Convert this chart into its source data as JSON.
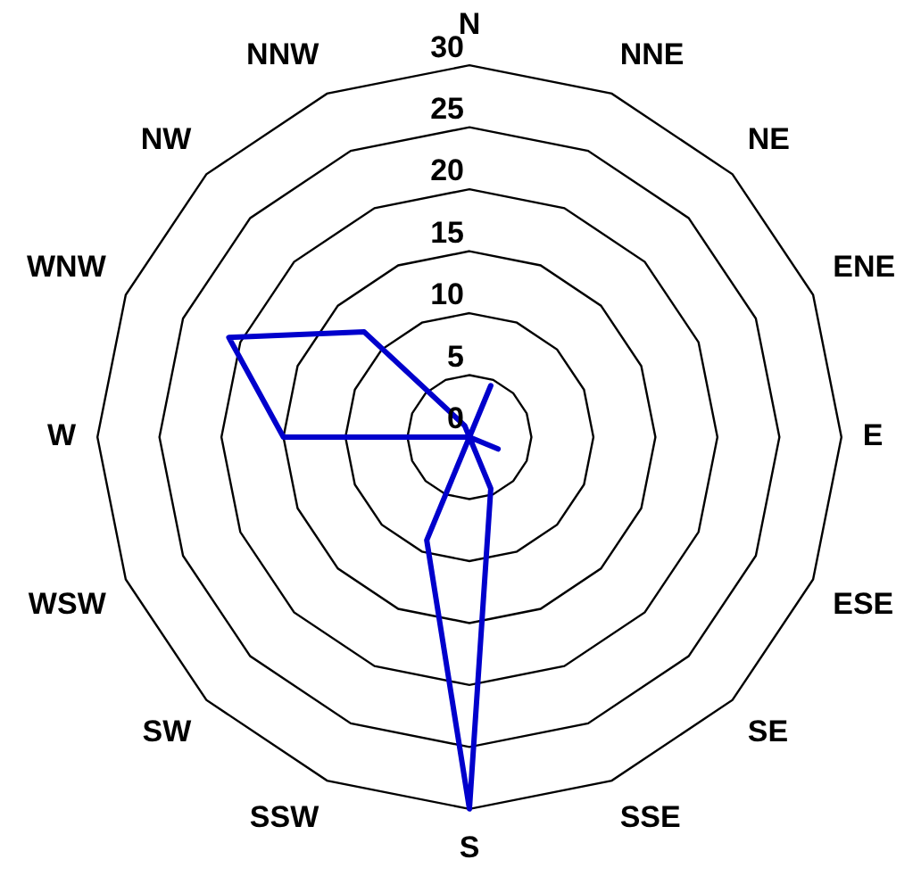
{
  "chart_data": {
    "type": "radar",
    "categories": [
      "N",
      "NNE",
      "NE",
      "ENE",
      "E",
      "ESE",
      "SE",
      "SSE",
      "S",
      "SSW",
      "SW",
      "WSW",
      "W",
      "WNW",
      "NW",
      "NNW"
    ],
    "series": [
      {
        "color": "#0000cc",
        "values": [
          0,
          4.5,
          0,
          0,
          0,
          2.5,
          0,
          4.5,
          30,
          9,
          0,
          0,
          15,
          21,
          12,
          1
        ]
      }
    ],
    "ylim": [
      0,
      30
    ],
    "yticks": [
      0,
      5,
      10,
      15,
      20,
      25,
      30
    ],
    "grid": true,
    "legend": false,
    "marker": "none",
    "line_style": "solid"
  }
}
